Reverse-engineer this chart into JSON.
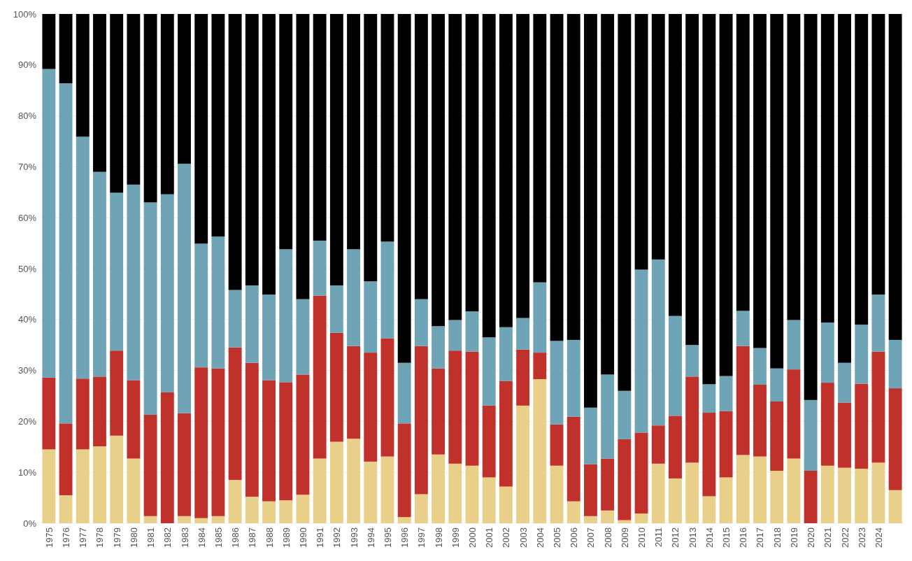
{
  "chart_data": {
    "type": "bar",
    "stacked": true,
    "categories": [
      "1975",
      "1976",
      "1977",
      "1978",
      "1979",
      "1980",
      "1981",
      "1982",
      "1983",
      "1984",
      "1985",
      "1986",
      "1987",
      "1988",
      "1989",
      "1990",
      "1991",
      "1992",
      "1993",
      "1994",
      "1995",
      "1996",
      "1997",
      "1998",
      "1999",
      "2000",
      "2001",
      "2002",
      "2003",
      "2004",
      "2005",
      "2006",
      "2007",
      "2008",
      "2009",
      "2010",
      "2011",
      "2012",
      "2013",
      "2014",
      "2015",
      "2016",
      "2017",
      "2018",
      "2019",
      "2020",
      "2021",
      "2022",
      "2023",
      "2024",
      null
    ],
    "series": [
      {
        "color": "#e8d08a",
        "values": [
          14.5,
          5.5,
          14.5,
          15.1,
          17.2,
          12.7,
          1.4,
          0,
          1.4,
          1.0,
          1.4,
          8.5,
          5.2,
          4.3,
          4.5,
          5.6,
          12.7,
          16.0,
          16.6,
          12.1,
          13.1,
          1.2,
          5.7,
          13.5,
          11.7,
          11.3,
          9.0,
          7.2,
          23.1,
          28.3,
          11.3,
          4.3,
          1.4,
          2.5,
          0.6,
          1.9,
          11.7,
          8.8,
          11.9,
          5.3,
          9.0,
          13.4,
          13.1,
          10.3,
          12.7,
          0,
          11.3,
          10.9,
          10.7,
          11.9,
          6.5
        ]
      },
      {
        "color": "#c0312b",
        "values": [
          14.1,
          14.1,
          13.9,
          13.7,
          16.7,
          15.4,
          19.9,
          25.7,
          20.2,
          29.6,
          29.0,
          26.0,
          26.3,
          23.8,
          23.2,
          23.6,
          32.0,
          21.4,
          18.2,
          21.4,
          23.2,
          18.4,
          29.1,
          16.9,
          22.2,
          22.4,
          14.1,
          20.7,
          11.0,
          5.2,
          8.1,
          16.6,
          10.2,
          10.2,
          15.9,
          15.9,
          7.5,
          12.3,
          16.9,
          16.4,
          13.0,
          21.4,
          14.1,
          13.6,
          17.5,
          10.3,
          16.3,
          12.8,
          16.7,
          21.8,
          20.0
        ]
      },
      {
        "color": "#6fa3b6",
        "values": [
          60.6,
          66.8,
          47.5,
          40.2,
          31.0,
          38.4,
          41.7,
          38.9,
          49.0,
          24.3,
          25.9,
          11.3,
          15.2,
          16.8,
          26.1,
          14.8,
          10.8,
          9.3,
          19.0,
          14.0,
          19.0,
          11.9,
          9.2,
          8.3,
          6.0,
          7.9,
          13.4,
          10.6,
          6.2,
          13.8,
          16.4,
          15.1,
          11.1,
          16.5,
          9.5,
          32.0,
          32.6,
          19.6,
          6.2,
          5.6,
          6.9,
          6.9,
          7.2,
          6.5,
          9.7,
          13.9,
          11.8,
          7.8,
          11.6,
          11.2,
          9.5
        ]
      },
      {
        "color": "#000000",
        "values": [
          10.8,
          13.6,
          24.1,
          31.0,
          35.1,
          33.5,
          37.0,
          35.4,
          29.4,
          45.1,
          43.7,
          54.2,
          53.3,
          55.1,
          46.2,
          56.0,
          44.5,
          53.3,
          46.2,
          52.5,
          44.7,
          68.5,
          56.0,
          61.3,
          60.1,
          58.4,
          63.5,
          61.5,
          59.7,
          52.7,
          64.2,
          64.0,
          77.3,
          70.8,
          74.0,
          50.2,
          48.2,
          59.3,
          65.0,
          72.7,
          71.1,
          58.3,
          65.6,
          69.6,
          60.1,
          75.8,
          60.6,
          68.5,
          61.0,
          55.1,
          64.0
        ]
      }
    ],
    "ylim": [
      0,
      100
    ],
    "yticks": [
      {
        "value": 0,
        "label": "0%"
      },
      {
        "value": 10,
        "label": "10%"
      },
      {
        "value": 20,
        "label": "20%"
      },
      {
        "value": 30,
        "label": "30%"
      },
      {
        "value": 40,
        "label": "40%"
      },
      {
        "value": 50,
        "label": "50%"
      },
      {
        "value": 60,
        "label": "60%"
      },
      {
        "value": 70,
        "label": "70%"
      },
      {
        "value": 80,
        "label": "80%"
      },
      {
        "value": 90,
        "label": "90%"
      },
      {
        "value": 100,
        "label": "100%"
      }
    ],
    "grid": "y"
  }
}
